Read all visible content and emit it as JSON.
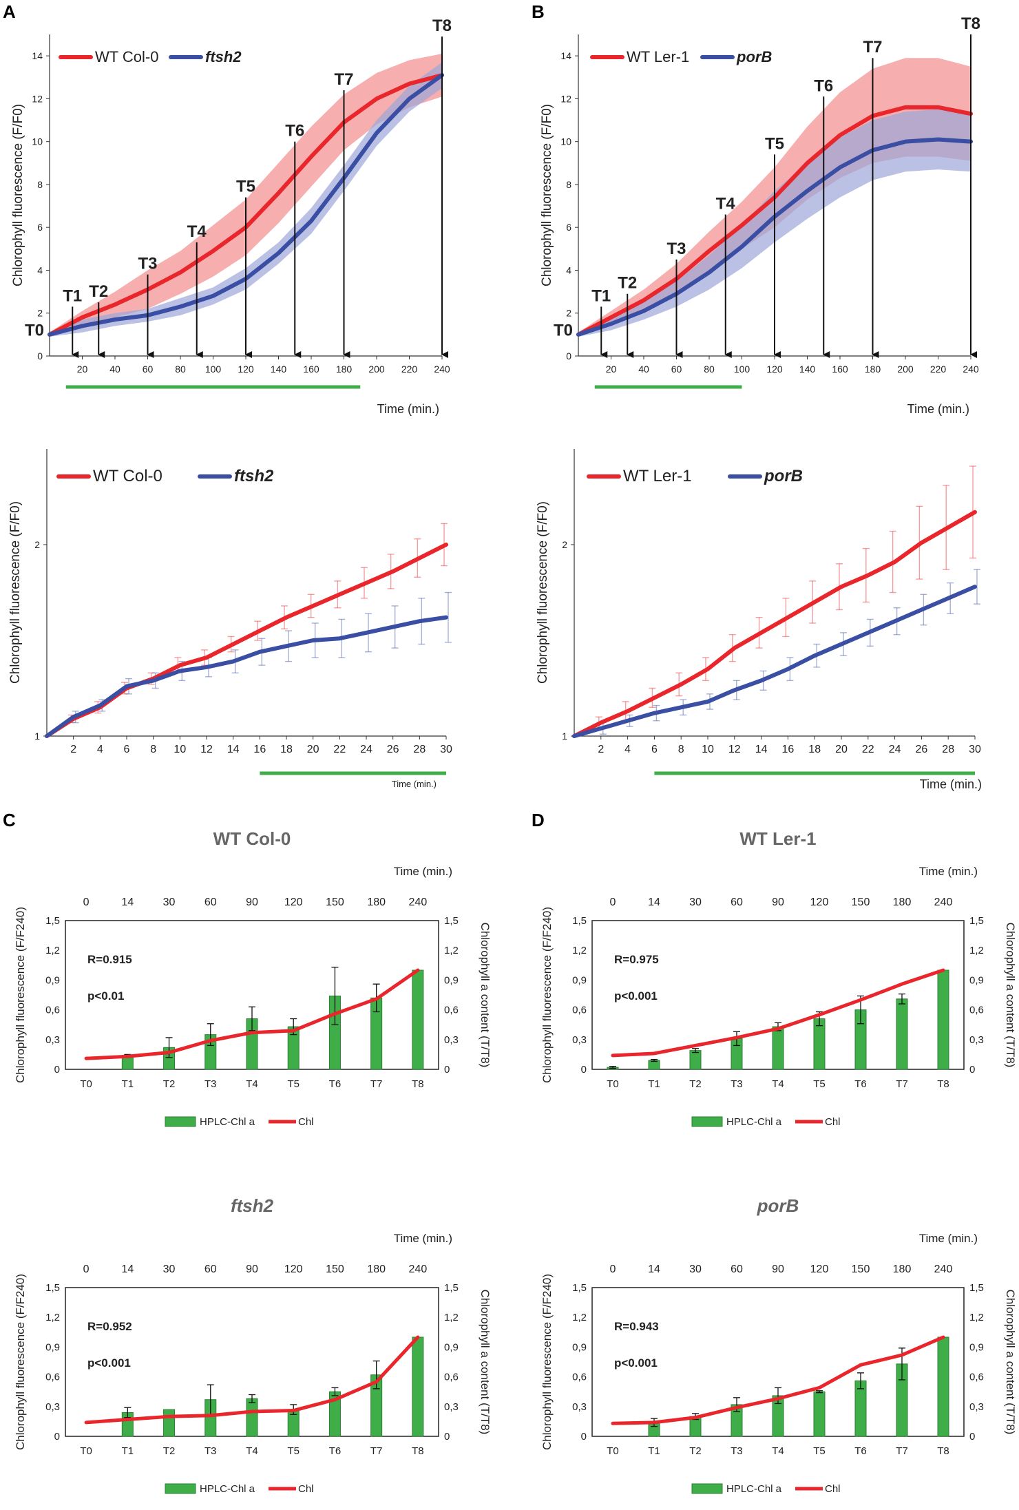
{
  "colors": {
    "wt": "#e8262b",
    "mutant": "#3a4fa3",
    "wt_band": "#f28c8c",
    "mutant_band": "#9ca6d8",
    "bar": "#3fae49",
    "bar_edge": "#2a7f33",
    "green_line": "#3fae49",
    "axis": "#333333",
    "grid": "#d9d9d9"
  },
  "panel_labels": [
    "A",
    "B",
    "C",
    "D"
  ],
  "chart_data": [
    {
      "id": "A-top",
      "type": "line",
      "ylabel": "Chlorophyll fluorescence (F/F0)",
      "xlabel": "Time (min.)",
      "xlim": [
        0,
        240
      ],
      "ylim": [
        0,
        15
      ],
      "xticks": [
        20,
        40,
        60,
        80,
        100,
        120,
        140,
        160,
        180,
        200,
        220,
        240
      ],
      "yticks": [
        0,
        2,
        4,
        6,
        8,
        10,
        12,
        14
      ],
      "x": [
        0,
        20,
        40,
        60,
        80,
        100,
        120,
        140,
        160,
        180,
        200,
        220,
        240
      ],
      "series": [
        {
          "name": "WT Col-0",
          "italic": false,
          "color_key": "wt",
          "values": [
            1.0,
            1.8,
            2.4,
            3.1,
            3.9,
            4.9,
            6.0,
            7.6,
            9.3,
            10.9,
            12.0,
            12.7,
            13.1
          ],
          "err": [
            0.1,
            0.3,
            0.6,
            0.9,
            1.0,
            1.2,
            1.3,
            1.4,
            1.4,
            1.3,
            1.2,
            1.1,
            1.0
          ]
        },
        {
          "name": "ftsh2",
          "italic": true,
          "color_key": "mutant",
          "values": [
            1.0,
            1.4,
            1.7,
            1.9,
            2.3,
            2.8,
            3.6,
            4.8,
            6.3,
            8.3,
            10.4,
            12.0,
            13.1
          ],
          "err": [
            0.1,
            0.3,
            0.3,
            0.3,
            0.4,
            0.4,
            0.5,
            0.5,
            0.6,
            0.6,
            0.6,
            0.6,
            0.6
          ]
        }
      ],
      "timepoints": [
        {
          "label": "T0",
          "x": 0,
          "top": 1.2
        },
        {
          "label": "T1",
          "x": 14,
          "top": 2.3
        },
        {
          "label": "T2",
          "x": 30,
          "top": 2.5
        },
        {
          "label": "T3",
          "x": 60,
          "top": 3.8
        },
        {
          "label": "T4",
          "x": 90,
          "top": 5.3
        },
        {
          "label": "T5",
          "x": 120,
          "top": 7.4
        },
        {
          "label": "T6",
          "x": 150,
          "top": 10.0
        },
        {
          "label": "T7",
          "x": 180,
          "top": 12.4
        },
        {
          "label": "T8",
          "x": 240,
          "top": 14.9
        }
      ],
      "light_period": [
        10,
        190
      ]
    },
    {
      "id": "B-top",
      "type": "line",
      "ylabel": "Chlorophyll fluorescence (F/F0)",
      "xlabel": "Time (min.)",
      "xlim": [
        0,
        240
      ],
      "ylim": [
        0,
        15
      ],
      "xticks": [
        20,
        40,
        60,
        80,
        100,
        120,
        140,
        160,
        180,
        200,
        220,
        240
      ],
      "yticks": [
        0,
        2,
        4,
        6,
        8,
        10,
        12,
        14
      ],
      "x": [
        0,
        20,
        40,
        60,
        80,
        100,
        120,
        140,
        160,
        180,
        200,
        220,
        240
      ],
      "series": [
        {
          "name": "WT Ler-1",
          "italic": false,
          "color_key": "wt",
          "values": [
            1.0,
            1.8,
            2.6,
            3.6,
            4.9,
            6.1,
            7.4,
            9.0,
            10.3,
            11.2,
            11.6,
            11.6,
            11.3
          ],
          "err": [
            0.1,
            0.3,
            0.5,
            0.7,
            0.9,
            1.1,
            1.4,
            1.7,
            2.0,
            2.2,
            2.3,
            2.3,
            2.2
          ]
        },
        {
          "name": "porB",
          "italic": true,
          "color_key": "mutant",
          "values": [
            1.0,
            1.5,
            2.1,
            2.9,
            3.9,
            5.1,
            6.5,
            7.7,
            8.8,
            9.6,
            10.0,
            10.1,
            10.0
          ],
          "err": [
            0.1,
            0.3,
            0.4,
            0.6,
            0.8,
            1.0,
            1.2,
            1.3,
            1.4,
            1.4,
            1.4,
            1.4,
            1.4
          ]
        }
      ],
      "timepoints": [
        {
          "label": "T0",
          "x": 0,
          "top": 1.2
        },
        {
          "label": "T1",
          "x": 14,
          "top": 2.3
        },
        {
          "label": "T2",
          "x": 30,
          "top": 2.9
        },
        {
          "label": "T3",
          "x": 60,
          "top": 4.5
        },
        {
          "label": "T4",
          "x": 90,
          "top": 6.6
        },
        {
          "label": "T5",
          "x": 120,
          "top": 9.4
        },
        {
          "label": "T6",
          "x": 150,
          "top": 12.1
        },
        {
          "label": "T7",
          "x": 180,
          "top": 13.9
        },
        {
          "label": "T8",
          "x": 240,
          "top": 15.0
        }
      ],
      "light_period": [
        10,
        100
      ]
    },
    {
      "id": "A-bottom",
      "type": "line",
      "ylabel": "Chlorophyll fluorescence (F/F0)",
      "xlabel": "Time (min.)",
      "xlim": [
        0,
        30
      ],
      "ylim": [
        1,
        2.5
      ],
      "xticks": [
        2,
        4,
        6,
        8,
        10,
        12,
        14,
        16,
        18,
        20,
        22,
        24,
        26,
        28,
        30
      ],
      "yticks": [
        1,
        2
      ],
      "x": [
        0,
        2,
        4,
        6,
        8,
        10,
        12,
        14,
        16,
        18,
        20,
        22,
        24,
        26,
        28,
        30
      ],
      "series": [
        {
          "name": "WT Col-0",
          "italic": false,
          "color_key": "wt",
          "values": [
            1.0,
            1.09,
            1.15,
            1.25,
            1.3,
            1.37,
            1.41,
            1.48,
            1.55,
            1.62,
            1.68,
            1.74,
            1.8,
            1.86,
            1.93,
            2.0
          ],
          "err": [
            0,
            0.02,
            0.03,
            0.03,
            0.03,
            0.04,
            0.04,
            0.04,
            0.05,
            0.06,
            0.06,
            0.07,
            0.08,
            0.09,
            0.1,
            0.11
          ]
        },
        {
          "name": "ftsh2",
          "italic": true,
          "color_key": "mutant",
          "values": [
            1.0,
            1.1,
            1.16,
            1.26,
            1.29,
            1.34,
            1.36,
            1.39,
            1.44,
            1.47,
            1.5,
            1.51,
            1.54,
            1.57,
            1.6,
            1.62
          ],
          "err": [
            0,
            0.03,
            0.03,
            0.04,
            0.04,
            0.05,
            0.05,
            0.06,
            0.07,
            0.08,
            0.09,
            0.1,
            0.1,
            0.11,
            0.12,
            0.13
          ]
        }
      ],
      "light_period": [
        16,
        30
      ]
    },
    {
      "id": "B-bottom",
      "type": "line",
      "ylabel": "Chlorophyll fluorescence (F/F0)",
      "xlabel": "Time (min.)",
      "xlim": [
        0,
        30
      ],
      "ylim": [
        1,
        2.5
      ],
      "xticks": [
        2,
        4,
        6,
        8,
        10,
        12,
        14,
        16,
        18,
        20,
        22,
        24,
        26,
        28,
        30
      ],
      "yticks": [
        1,
        2
      ],
      "x": [
        0,
        2,
        4,
        6,
        8,
        10,
        12,
        14,
        16,
        18,
        20,
        22,
        24,
        26,
        28,
        30
      ],
      "series": [
        {
          "name": "WT Ler-1",
          "italic": false,
          "color_key": "wt",
          "values": [
            1.0,
            1.07,
            1.13,
            1.2,
            1.27,
            1.35,
            1.46,
            1.54,
            1.62,
            1.7,
            1.78,
            1.84,
            1.91,
            2.01,
            2.09,
            2.17
          ],
          "err": [
            0,
            0.03,
            0.05,
            0.05,
            0.06,
            0.06,
            0.07,
            0.08,
            0.1,
            0.11,
            0.12,
            0.14,
            0.16,
            0.19,
            0.22,
            0.24
          ]
        },
        {
          "name": "porB",
          "italic": true,
          "color_key": "mutant",
          "values": [
            1.0,
            1.04,
            1.08,
            1.12,
            1.15,
            1.18,
            1.24,
            1.29,
            1.35,
            1.42,
            1.48,
            1.54,
            1.6,
            1.66,
            1.72,
            1.78
          ],
          "err": [
            0,
            0.03,
            0.03,
            0.04,
            0.04,
            0.04,
            0.05,
            0.05,
            0.06,
            0.06,
            0.06,
            0.07,
            0.07,
            0.08,
            0.08,
            0.09
          ]
        }
      ],
      "light_period": [
        6,
        30
      ]
    },
    {
      "id": "C-top",
      "type": "bar+line",
      "title": "WT Col-0",
      "title_italic": false,
      "ylabel_left": "Chlorophyll fluorescence (F/F240)",
      "ylabel_right": "Chlorophyll a content (T/T8)",
      "top_axis_label": "Time (min.)",
      "top_ticks": [
        "0",
        "14",
        "30",
        "60",
        "90",
        "120",
        "150",
        "180",
        "240"
      ],
      "categories": [
        "T0",
        "T1",
        "T2",
        "T3",
        "T4",
        "T5",
        "T6",
        "T7",
        "T8"
      ],
      "yticks": [
        "0",
        "0,3",
        "0,6",
        "0,9",
        "1,2",
        "1,5"
      ],
      "ylim": [
        0,
        1.5
      ],
      "bars": {
        "name": "HPLC-Chl a",
        "values": [
          0.0,
          0.14,
          0.22,
          0.35,
          0.51,
          0.43,
          0.74,
          0.72,
          1.0
        ],
        "err": [
          0,
          0.01,
          0.1,
          0.11,
          0.12,
          0.08,
          0.29,
          0.14,
          0
        ]
      },
      "line": {
        "name": "Chl",
        "values": [
          0.11,
          0.13,
          0.17,
          0.29,
          0.37,
          0.39,
          0.56,
          0.71,
          1.0
        ]
      },
      "stats": [
        "R=0.915",
        "p<0.01"
      ]
    },
    {
      "id": "D-top",
      "type": "bar+line",
      "title": "WT Ler-1",
      "title_italic": false,
      "ylabel_left": "Chlorophyll fluorescence (F/F240)",
      "ylabel_right": "Chlorophyll a content (T/T8)",
      "top_axis_label": "Time (min.)",
      "top_ticks": [
        "0",
        "14",
        "30",
        "60",
        "90",
        "120",
        "150",
        "180",
        "240"
      ],
      "categories": [
        "T0",
        "T1",
        "T2",
        "T3",
        "T4",
        "T5",
        "T6",
        "T7",
        "T8"
      ],
      "yticks": [
        "0",
        "0,3",
        "0,6",
        "0,9",
        "1,2",
        "1,5"
      ],
      "ylim": [
        0,
        1.5
      ],
      "bars": {
        "name": "HPLC-Chl a",
        "values": [
          0.02,
          0.09,
          0.19,
          0.31,
          0.43,
          0.51,
          0.6,
          0.71,
          1.0
        ],
        "err": [
          0.01,
          0.01,
          0.02,
          0.07,
          0.04,
          0.07,
          0.14,
          0.05,
          0
        ]
      },
      "line": {
        "name": "Chl",
        "values": [
          0.14,
          0.16,
          0.24,
          0.32,
          0.41,
          0.55,
          0.7,
          0.86,
          1.0
        ]
      },
      "stats": [
        "R=0.975",
        "p<0.001"
      ]
    },
    {
      "id": "C-bottom",
      "type": "bar+line",
      "title": "ftsh2",
      "title_italic": true,
      "ylabel_left": "Chlorophyll fluorescence (F/F240)",
      "ylabel_right": "Chlorophyll a content (T/T8)",
      "top_axis_label": "Time (min.)",
      "top_ticks": [
        "0",
        "14",
        "30",
        "60",
        "90",
        "120",
        "150",
        "180",
        "240"
      ],
      "categories": [
        "T0",
        "T1",
        "T2",
        "T3",
        "T4",
        "T5",
        "T6",
        "T7",
        "T8"
      ],
      "yticks": [
        "0",
        "0,3",
        "0,6",
        "0,9",
        "1,2",
        "1,5"
      ],
      "ylim": [
        0,
        1.5
      ],
      "bars": {
        "name": "HPLC-Chl a",
        "values": [
          0.0,
          0.24,
          0.27,
          0.37,
          0.38,
          0.27,
          0.45,
          0.62,
          1.0
        ],
        "err": [
          0,
          0.05,
          0.0,
          0.15,
          0.04,
          0.05,
          0.04,
          0.14,
          0
        ]
      },
      "line": {
        "name": "Chl",
        "values": [
          0.14,
          0.17,
          0.2,
          0.21,
          0.25,
          0.26,
          0.37,
          0.55,
          1.0
        ]
      },
      "stats": [
        "R=0.952",
        "p<0.001"
      ]
    },
    {
      "id": "D-bottom",
      "type": "bar+line",
      "title": "porB",
      "title_italic": true,
      "ylabel_left": "Chlorophyll fluorescence (F/F240)",
      "ylabel_right": "Chlorophyll a content (T/T8)",
      "top_axis_label": "Time (min.)",
      "top_ticks": [
        "0",
        "14",
        "30",
        "60",
        "90",
        "120",
        "150",
        "180",
        "240"
      ],
      "categories": [
        "T0",
        "T1",
        "T2",
        "T3",
        "T4",
        "T5",
        "T6",
        "T7",
        "T8"
      ],
      "yticks": [
        "0",
        "0,3",
        "0,6",
        "0,9",
        "1,2",
        "1,5"
      ],
      "ylim": [
        0,
        1.5
      ],
      "bars": {
        "name": "HPLC-Chl a",
        "values": [
          0.0,
          0.14,
          0.2,
          0.32,
          0.41,
          0.45,
          0.56,
          0.73,
          1.0
        ],
        "err": [
          0,
          0.04,
          0.03,
          0.07,
          0.08,
          0.01,
          0.08,
          0.16,
          0
        ]
      },
      "line": {
        "name": "Chl",
        "values": [
          0.13,
          0.14,
          0.19,
          0.29,
          0.38,
          0.49,
          0.72,
          0.82,
          1.0
        ]
      },
      "stats": [
        "R=0.943",
        "p<0.001"
      ]
    }
  ]
}
